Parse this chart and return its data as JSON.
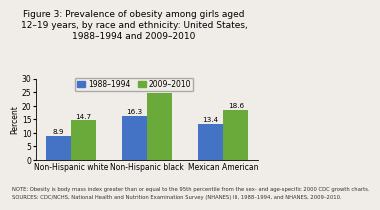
{
  "title": "Figure 3: Prevalence of obesity among girls aged\n12–19 years, by race and ethnicity: United States,\n1988–1994 and 2009–2010",
  "categories": [
    "Non-Hispanic white",
    "Non-Hispanic black",
    "Mexican American"
  ],
  "series": [
    {
      "label": "1988–1994",
      "values": [
        8.9,
        16.3,
        13.4
      ],
      "color": "#4472c4"
    },
    {
      "label": "2009–2010",
      "values": [
        14.7,
        24.8,
        18.6
      ],
      "color": "#6aaa3a"
    }
  ],
  "ylabel": "Percent",
  "ylim": [
    0,
    30
  ],
  "yticks": [
    0,
    5,
    10,
    15,
    20,
    25,
    30
  ],
  "note1": "NOTE: Obesity is body mass index greater than or equal to the 95th percentile from the sex- and age-specific 2000 CDC growth charts.",
  "note2": "SOURCES: CDC/NCHS, National Health and Nutrition Examination Survey (NHANES) III, 1988–1994, and NHANES, 2009–2010.",
  "background_color": "#f0ede8",
  "title_fontsize": 6.5,
  "label_fontsize": 5.5,
  "tick_fontsize": 5.5,
  "bar_label_fontsize": 5.2,
  "note_fontsize": 3.8,
  "legend_fontsize": 5.5
}
